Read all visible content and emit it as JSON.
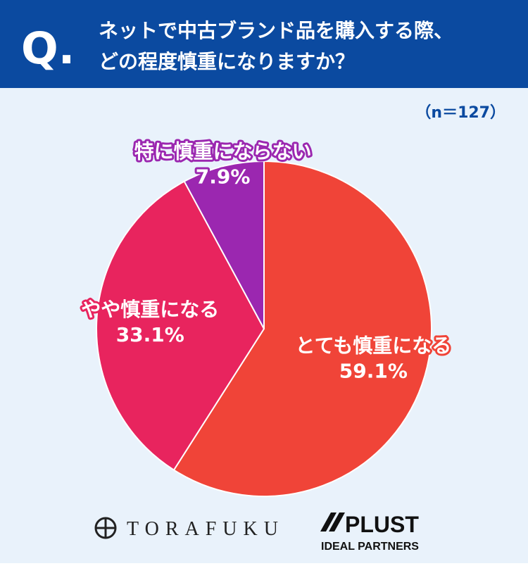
{
  "chart_data": {
    "type": "pie",
    "question_mark": "Q.",
    "title_lines": [
      "ネットで中古ブランド品を購入する際、",
      "どの程度慎重になりますか？"
    ],
    "note": "（n＝127）",
    "categories": [
      "とても慎重になる",
      "やや慎重になる",
      "特に慎重にならない"
    ],
    "values": [
      59.1,
      33.1,
      7.9
    ],
    "value_labels": [
      "59.1%",
      "33.1%",
      "7.9%"
    ],
    "colors": [
      "#f04438",
      "#e8245e",
      "#9b27b0"
    ]
  },
  "footer": {
    "logo_left": "TORAFUKU",
    "logo_right": "PLUST",
    "logo_right_sub": "IDEAL PARTNERS"
  }
}
